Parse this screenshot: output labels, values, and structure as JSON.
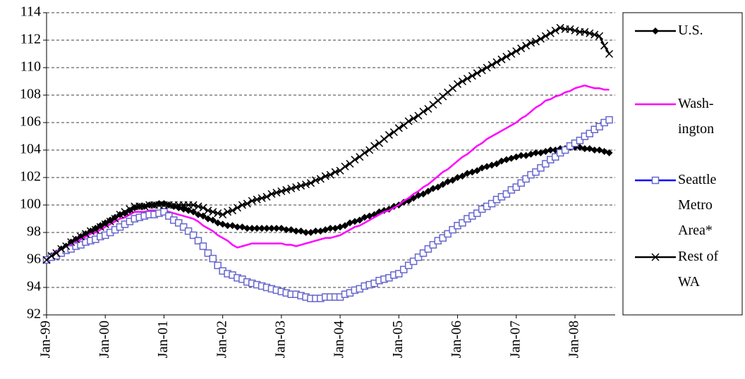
{
  "chart_data": {
    "type": "line",
    "categories": [
      "Jan-99",
      null,
      null,
      null,
      null,
      null,
      null,
      null,
      null,
      null,
      null,
      null,
      "Jan-00",
      null,
      null,
      null,
      null,
      null,
      null,
      null,
      null,
      null,
      null,
      null,
      "Jan-01",
      null,
      null,
      null,
      null,
      null,
      null,
      null,
      null,
      null,
      null,
      null,
      "Jan-02",
      null,
      null,
      null,
      null,
      null,
      null,
      null,
      null,
      null,
      null,
      null,
      "Jan-03",
      null,
      null,
      null,
      null,
      null,
      null,
      null,
      null,
      null,
      null,
      null,
      "Jan-04",
      null,
      null,
      null,
      null,
      null,
      null,
      null,
      null,
      null,
      null,
      null,
      "Jan-05",
      null,
      null,
      null,
      null,
      null,
      null,
      null,
      null,
      null,
      null,
      null,
      "Jan-06",
      null,
      null,
      null,
      null,
      null,
      null,
      null,
      null,
      null,
      null,
      null,
      "Jan-07",
      null,
      null,
      null,
      null,
      null,
      null,
      null,
      null,
      null,
      null,
      null,
      "Jan-08",
      null,
      null,
      null,
      null,
      null,
      null,
      null
    ],
    "series": [
      {
        "name": "U.S.",
        "color": "#000000",
        "marker": "diamond",
        "values": [
          96.0,
          96.3,
          96.5,
          96.8,
          97.0,
          97.3,
          97.5,
          97.7,
          97.9,
          98.1,
          98.3,
          98.5,
          98.7,
          98.9,
          99.1,
          99.3,
          99.4,
          99.6,
          99.8,
          99.9,
          99.9,
          100.0,
          100.0,
          100.1,
          100.1,
          100.0,
          99.9,
          99.8,
          99.7,
          99.6,
          99.5,
          99.3,
          99.2,
          99.0,
          98.9,
          98.7,
          98.6,
          98.5,
          98.5,
          98.4,
          98.4,
          98.3,
          98.3,
          98.3,
          98.3,
          98.3,
          98.3,
          98.3,
          98.3,
          98.2,
          98.2,
          98.1,
          98.1,
          98.0,
          98.0,
          98.1,
          98.1,
          98.2,
          98.3,
          98.3,
          98.4,
          98.5,
          98.7,
          98.8,
          98.9,
          99.1,
          99.2,
          99.3,
          99.5,
          99.6,
          99.7,
          99.9,
          100.0,
          100.2,
          100.3,
          100.5,
          100.7,
          100.8,
          101.0,
          101.2,
          101.3,
          101.5,
          101.7,
          101.8,
          102.0,
          102.1,
          102.3,
          102.4,
          102.5,
          102.7,
          102.8,
          102.9,
          103.0,
          103.2,
          103.3,
          103.4,
          103.5,
          103.6,
          103.6,
          103.7,
          103.8,
          103.8,
          103.9,
          104.0,
          104.0,
          104.1,
          104.1,
          104.2,
          104.2,
          104.2,
          104.1,
          104.1,
          104.0,
          104.0,
          103.9,
          103.8
        ]
      },
      {
        "name": "Wash-\nington",
        "color": "#ff00ff",
        "marker": "none",
        "values": [
          96.2,
          96.4,
          96.6,
          96.8,
          97.0,
          97.1,
          97.3,
          97.5,
          97.7,
          97.9,
          98.0,
          98.2,
          98.4,
          98.6,
          98.8,
          99.0,
          99.1,
          99.3,
          99.5,
          99.5,
          99.5,
          99.6,
          99.6,
          99.6,
          99.6,
          99.5,
          99.4,
          99.3,
          99.2,
          99.1,
          99.0,
          98.8,
          98.5,
          98.3,
          98.1,
          97.8,
          97.6,
          97.4,
          97.1,
          96.9,
          97.0,
          97.1,
          97.2,
          97.2,
          97.2,
          97.2,
          97.2,
          97.2,
          97.2,
          97.1,
          97.1,
          97.0,
          97.1,
          97.2,
          97.3,
          97.4,
          97.5,
          97.6,
          97.6,
          97.7,
          97.8,
          98.0,
          98.2,
          98.4,
          98.5,
          98.7,
          98.9,
          99.1,
          99.3,
          99.5,
          99.6,
          99.8,
          100.0,
          100.3,
          100.5,
          100.8,
          101.0,
          101.3,
          101.5,
          101.8,
          102.1,
          102.4,
          102.6,
          102.9,
          103.2,
          103.5,
          103.7,
          104.0,
          104.3,
          104.5,
          104.8,
          105.0,
          105.2,
          105.4,
          105.6,
          105.8,
          106.0,
          106.3,
          106.5,
          106.8,
          107.1,
          107.3,
          107.6,
          107.7,
          107.9,
          108.0,
          108.2,
          108.3,
          108.5,
          108.6,
          108.7,
          108.6,
          108.5,
          108.5,
          108.4,
          108.4
        ]
      },
      {
        "name": "Seattle\nMetro\nArea*",
        "color": "#0000ff",
        "marker": "square",
        "marker_color": "#6666cc",
        "values": [
          96.0,
          96.2,
          96.3,
          96.5,
          96.7,
          96.8,
          97.0,
          97.1,
          97.3,
          97.4,
          97.5,
          97.7,
          97.8,
          98.0,
          98.2,
          98.4,
          98.6,
          98.8,
          99.0,
          99.1,
          99.2,
          99.3,
          99.3,
          99.4,
          99.5,
          99.2,
          98.9,
          98.7,
          98.4,
          98.1,
          97.8,
          97.4,
          97.0,
          96.5,
          96.1,
          95.6,
          95.2,
          95.0,
          94.9,
          94.7,
          94.6,
          94.4,
          94.3,
          94.2,
          94.1,
          94.0,
          93.9,
          93.8,
          93.7,
          93.6,
          93.5,
          93.5,
          93.4,
          93.3,
          93.2,
          93.2,
          93.2,
          93.3,
          93.3,
          93.3,
          93.3,
          93.5,
          93.6,
          93.8,
          93.9,
          94.1,
          94.2,
          94.3,
          94.5,
          94.6,
          94.7,
          94.9,
          95.0,
          95.3,
          95.6,
          95.9,
          96.2,
          96.5,
          96.8,
          97.1,
          97.4,
          97.6,
          97.9,
          98.2,
          98.5,
          98.7,
          99.0,
          99.2,
          99.4,
          99.7,
          99.9,
          100.1,
          100.4,
          100.6,
          100.8,
          101.1,
          101.3,
          101.6,
          101.9,
          102.2,
          102.4,
          102.7,
          103.0,
          103.3,
          103.5,
          103.8,
          104.0,
          104.3,
          104.5,
          104.7,
          105.0,
          105.2,
          105.5,
          105.7,
          106.0,
          106.2
        ]
      },
      {
        "name": "Rest of\nWA",
        "color": "#000000",
        "marker": "x",
        "values": [
          96.0,
          96.3,
          96.5,
          96.8,
          97.0,
          97.3,
          97.5,
          97.7,
          97.9,
          98.1,
          98.2,
          98.4,
          98.6,
          98.8,
          99.0,
          99.3,
          99.5,
          99.7,
          99.9,
          99.9,
          99.9,
          100.0,
          100.0,
          100.0,
          100.0,
          100.0,
          100.0,
          100.0,
          100.0,
          100.0,
          100.0,
          99.9,
          99.8,
          99.6,
          99.5,
          99.4,
          99.3,
          99.5,
          99.6,
          99.8,
          100.0,
          100.1,
          100.3,
          100.4,
          100.5,
          100.6,
          100.8,
          100.9,
          101.0,
          101.1,
          101.2,
          101.3,
          101.4,
          101.5,
          101.6,
          101.8,
          101.9,
          102.1,
          102.2,
          102.4,
          102.5,
          102.8,
          103.0,
          103.3,
          103.5,
          103.8,
          104.0,
          104.3,
          104.5,
          104.8,
          105.1,
          105.3,
          105.6,
          105.8,
          106.1,
          106.3,
          106.5,
          106.8,
          107.0,
          107.3,
          107.6,
          107.9,
          108.2,
          108.5,
          108.8,
          109.0,
          109.2,
          109.4,
          109.6,
          109.8,
          110.0,
          110.2,
          110.4,
          110.6,
          110.8,
          111.0,
          111.2,
          111.4,
          111.6,
          111.8,
          111.9,
          112.1,
          112.3,
          112.5,
          112.7,
          112.9,
          112.8,
          112.8,
          112.7,
          112.6,
          112.6,
          112.5,
          112.4,
          112.3,
          111.6,
          111.0
        ]
      }
    ],
    "ylim": [
      92,
      114
    ],
    "yticks": [
      92,
      94,
      96,
      98,
      100,
      102,
      104,
      106,
      108,
      110,
      112,
      114
    ],
    "grid": true,
    "legend": "right"
  }
}
